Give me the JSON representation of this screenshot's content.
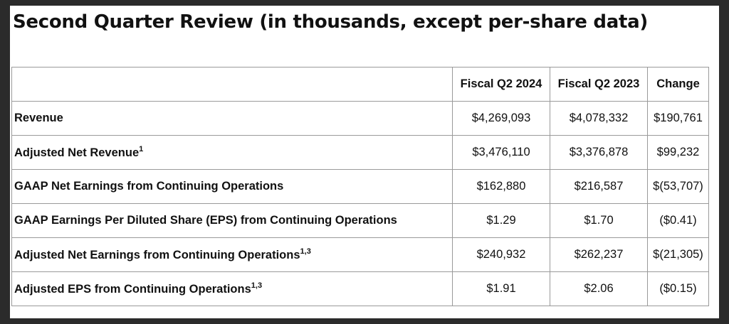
{
  "title": "Second Quarter Review (in thousands, except per-share data)",
  "table": {
    "headers": [
      "",
      "Fiscal Q2 2024",
      "Fiscal Q2 2023",
      "Change"
    ],
    "rows": [
      {
        "label": "Revenue",
        "footnote": "",
        "q2_2024": "$4,269,093",
        "q2_2023": "$4,078,332",
        "change": "$190,761"
      },
      {
        "label": "Adjusted Net Revenue",
        "footnote": "1",
        "q2_2024": "$3,476,110",
        "q2_2023": "$3,376,878",
        "change": "$99,232"
      },
      {
        "label": "GAAP Net Earnings from Continuing Operations",
        "footnote": "",
        "q2_2024": "$162,880",
        "q2_2023": "$216,587",
        "change": "$(53,707)"
      },
      {
        "label": "GAAP Earnings Per Diluted Share (EPS) from Continuing Operations",
        "footnote": "",
        "q2_2024": "$1.29",
        "q2_2023": "$1.70",
        "change": "($0.41)"
      },
      {
        "label": "Adjusted Net Earnings from Continuing Operations",
        "footnote": "1,3",
        "q2_2024": "$240,932",
        "q2_2023": "$262,237",
        "change": "$(21,305)"
      },
      {
        "label": "Adjusted EPS from Continuing Operations",
        "footnote": "1,3",
        "q2_2024": "$1.91",
        "q2_2023": "$2.06",
        "change": "($0.15)"
      }
    ]
  }
}
